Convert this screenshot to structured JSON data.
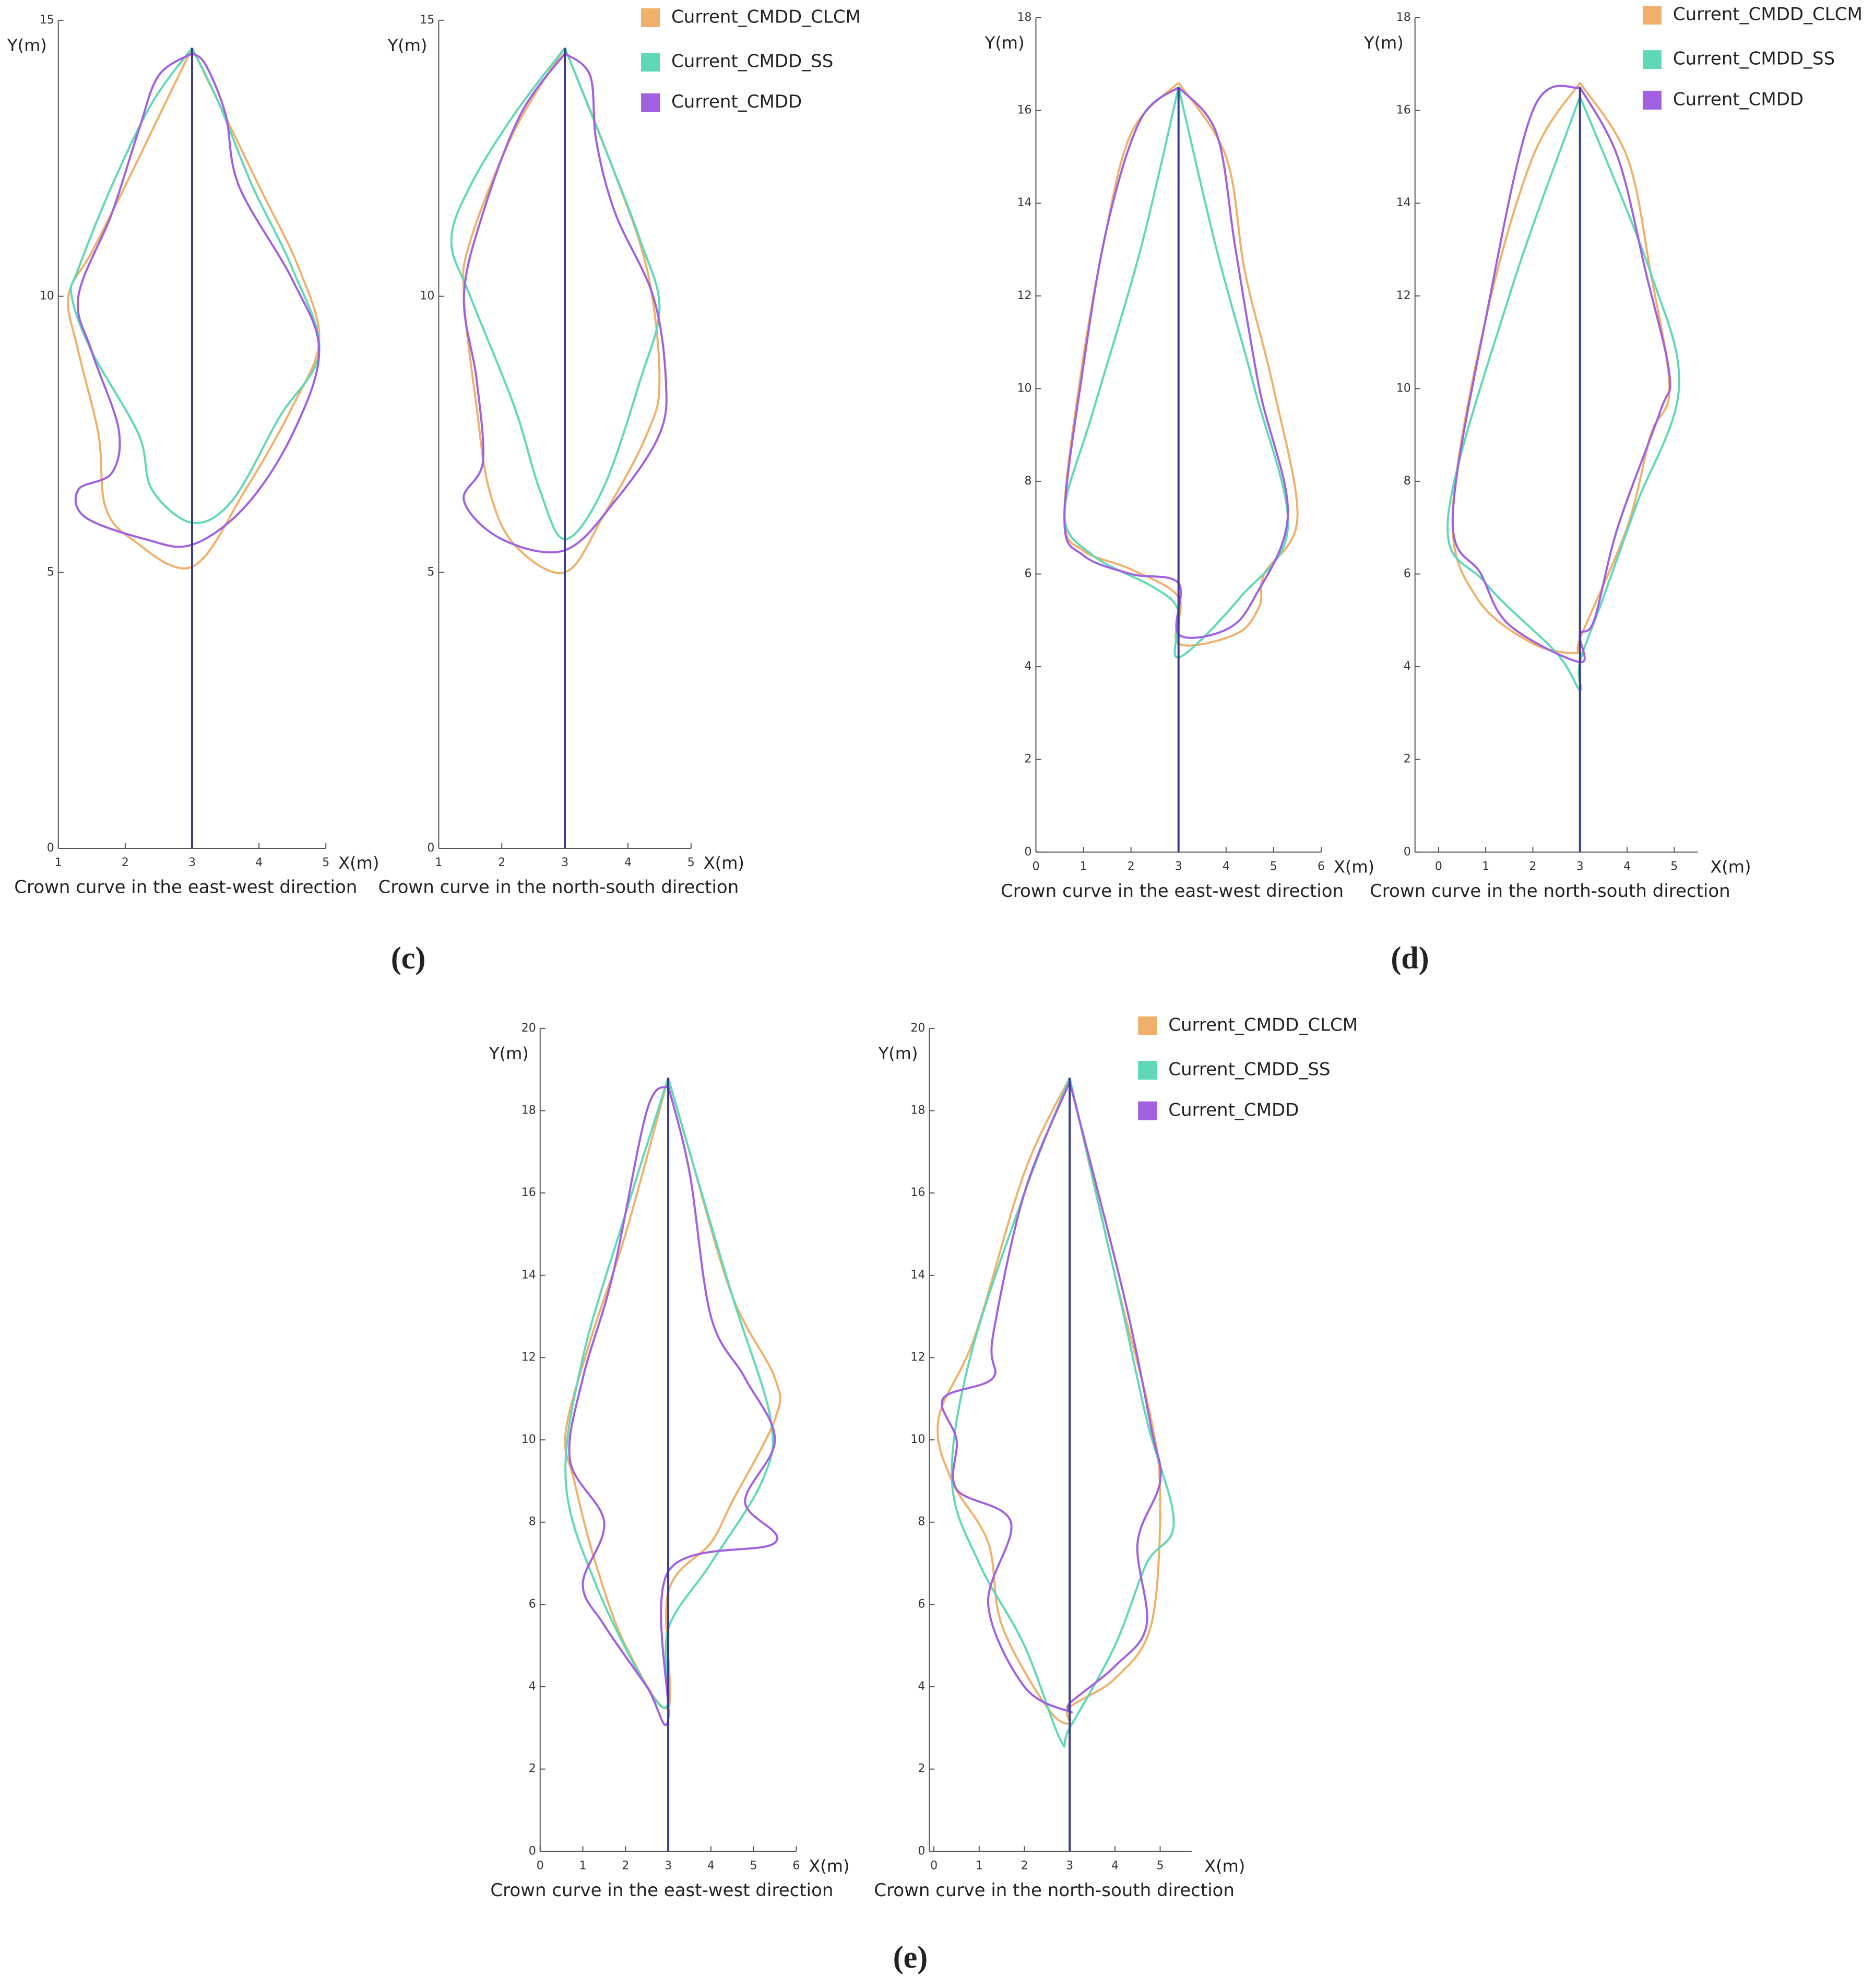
{
  "panel_labels": [
    "(c)",
    "(d)",
    "(e)"
  ],
  "chart_data": [
    {
      "type": "line",
      "caption": "Crown curve in the east-west direction",
      "xlabel": "X(m)",
      "ylabel": "Y(m)",
      "xlim": [
        1,
        5
      ],
      "ylim": [
        0,
        15
      ],
      "xticks": [
        1,
        2,
        3,
        4,
        5
      ],
      "yticks": [
        0,
        5,
        10,
        15
      ],
      "trunk": {
        "color": "#3a3a90",
        "x": [
          3,
          3
        ],
        "y": [
          0,
          14.5
        ]
      },
      "series": [
        {
          "color": "#f0b06a",
          "x": [
            3,
            2.6,
            2.0,
            1.5,
            1.15,
            1.3,
            1.6,
            1.7,
            2.1,
            3,
            3.8,
            4.5,
            4.9,
            4.6,
            4.0,
            3.4,
            3
          ],
          "y": [
            14.5,
            13.5,
            12,
            10.8,
            10,
            9,
            7.5,
            6.2,
            5.6,
            5.1,
            6.5,
            8,
            9.2,
            10.5,
            12,
            13.5,
            14.5
          ]
        },
        {
          "color": "#5fd8b8",
          "x": [
            3,
            2.4,
            1.8,
            1.3,
            1.2,
            1.5,
            2.2,
            2.4,
            3,
            3.6,
            4.3,
            4.9,
            4.5,
            3.9,
            3.4,
            3
          ],
          "y": [
            14.5,
            13.5,
            12,
            10.5,
            10,
            9,
            7.5,
            6.5,
            5.9,
            6.3,
            7.8,
            9,
            10.5,
            12,
            13.5,
            14.5
          ]
        },
        {
          "color": "#a060e0",
          "x": [
            3,
            2.5,
            2.2,
            1.8,
            1.3,
            1.5,
            1.9,
            1.8,
            1.3,
            1.4,
            2.3,
            3,
            3.8,
            4.5,
            4.9,
            4.5,
            3.7,
            3.5,
            3.2,
            3
          ],
          "y": [
            14.4,
            14,
            13,
            11.5,
            10,
            9,
            7.6,
            6.8,
            6.5,
            6,
            5.6,
            5.5,
            6.2,
            7.5,
            9,
            10.3,
            12,
            13.3,
            14.2,
            14.4
          ]
        }
      ]
    },
    {
      "type": "line",
      "caption": "Crown curve in the north-south direction",
      "xlabel": "X(m)",
      "ylabel": "Y(m)",
      "xlim": [
        1,
        5
      ],
      "ylim": [
        0,
        15
      ],
      "xticks": [
        1,
        2,
        3,
        4,
        5
      ],
      "yticks": [
        0,
        5,
        10,
        15
      ],
      "trunk": {
        "color": "#3a3a90",
        "x": [
          3,
          3
        ],
        "y": [
          0,
          14.5
        ]
      },
      "series": [
        {
          "name": "Current_CMDD_CLCM",
          "color": "#f0b06a",
          "x": [
            3,
            2.2,
            1.5,
            1.4,
            1.6,
            1.8,
            2.2,
            3,
            3.6,
            4.3,
            4.5,
            4.3,
            3.7,
            3
          ],
          "y": [
            14.5,
            13,
            11,
            10,
            8,
            6.5,
            5.5,
            5,
            6,
            7.5,
            8.5,
            10.5,
            12.5,
            14.5
          ]
        },
        {
          "name": "Current_CMDD_SS",
          "color": "#5fd8b8",
          "x": [
            3,
            2.2,
            1.5,
            1.2,
            1.5,
            2.2,
            2.6,
            3,
            3.6,
            4.2,
            4.5,
            4.2,
            3.7,
            3
          ],
          "y": [
            14.5,
            13.3,
            12,
            11,
            10,
            8,
            6.5,
            5.6,
            6.5,
            8.5,
            9.8,
            11,
            12.5,
            14.5
          ]
        },
        {
          "name": "Current_CMDD",
          "color": "#a060e0",
          "x": [
            3,
            2.3,
            1.7,
            1.4,
            1.6,
            1.7,
            1.4,
            2,
            3,
            3.8,
            4.5,
            4.6,
            4.4,
            3.8,
            3.5,
            3.4,
            3
          ],
          "y": [
            14.4,
            13.3,
            11.5,
            10,
            8.5,
            7,
            6.3,
            5.6,
            5.4,
            6.3,
            7.5,
            8.5,
            10,
            11.5,
            12.8,
            14,
            14.4
          ]
        }
      ]
    },
    {
      "type": "line",
      "caption": "Crown curve in the east-west direction",
      "xlabel": "X(m)",
      "ylabel": "Y(m)",
      "xlim": [
        0,
        6
      ],
      "ylim": [
        0,
        18
      ],
      "xticks": [
        0,
        1,
        2,
        3,
        4,
        5,
        6
      ],
      "yticks": [
        0,
        2,
        4,
        6,
        8,
        10,
        12,
        14,
        16,
        18
      ],
      "trunk": {
        "color": "#3a3a90",
        "x": [
          3,
          3
        ],
        "y": [
          0,
          16.5
        ]
      },
      "series": [
        {
          "color": "#f0b06a",
          "x": [
            3,
            2,
            1.4,
            0.9,
            0.6,
            1,
            2,
            3,
            3,
            4.2,
            4.7,
            4.8,
            5.5,
            5,
            4.4,
            4,
            3
          ],
          "y": [
            16.6,
            15.5,
            13,
            10,
            7.2,
            6.5,
            6.1,
            5.5,
            4.5,
            4.7,
            5.3,
            6,
            7.2,
            10,
            12.5,
            15,
            16.6
          ]
        },
        {
          "color": "#5fd8b8",
          "x": [
            3,
            2.2,
            1.2,
            0.6,
            1.2,
            2.5,
            3,
            3,
            4.3,
            5.3,
            4.6,
            3.8,
            3
          ],
          "y": [
            16.5,
            13,
            9.5,
            7.3,
            6.4,
            5.7,
            5.2,
            4.2,
            5.5,
            7,
            10,
            13,
            16.5
          ]
        },
        {
          "color": "#a060e0",
          "x": [
            3,
            2.2,
            1.5,
            1,
            0.6,
            1,
            2,
            3,
            3,
            4,
            4.6,
            5.3,
            4.7,
            4.2,
            3.8,
            3
          ],
          "y": [
            16.5,
            15.8,
            13.5,
            10.5,
            7.2,
            6.4,
            6,
            5.8,
            4.7,
            4.8,
            5.5,
            7.3,
            10,
            13,
            15.5,
            16.5
          ]
        }
      ]
    },
    {
      "type": "line",
      "caption": "Crown curve in the north-south direction",
      "xlabel": "X(m)",
      "ylabel": "Y(m)",
      "xlim": [
        -0.5,
        5.5
      ],
      "ylim": [
        0,
        18
      ],
      "xticks": [
        0,
        1,
        2,
        3,
        4,
        5
      ],
      "yticks": [
        0,
        2,
        4,
        6,
        8,
        10,
        12,
        14,
        16,
        18
      ],
      "trunk": {
        "color": "#3a3a90",
        "x": [
          3,
          3
        ],
        "y": [
          0,
          16.5
        ]
      },
      "series": [
        {
          "name": "Current_CMDD_CLCM",
          "color": "#f0b06a",
          "x": [
            3,
            2,
            1,
            0.3,
            0.8,
            2,
            3,
            3,
            4,
            4.5,
            4.9,
            4.5,
            4,
            3
          ],
          "y": [
            16.6,
            15,
            11.5,
            7.3,
            5.5,
            4.5,
            4.3,
            4.6,
            7,
            9,
            10,
            12.5,
            15,
            16.6
          ]
        },
        {
          "name": "Current_CMDD_SS",
          "color": "#5fd8b8",
          "x": [
            3,
            1.5,
            0.2,
            1,
            2.5,
            3,
            3,
            3.5,
            4.2,
            5.1,
            4.5,
            3
          ],
          "y": [
            16.3,
            12,
            7.2,
            5.8,
            4.3,
            3.5,
            4.1,
            5.5,
            7.5,
            10,
            12.5,
            16.3
          ]
        },
        {
          "name": "Current_CMDD",
          "color": "#a060e0",
          "x": [
            3,
            2,
            1,
            0.3,
            0.9,
            1.5,
            3,
            3,
            3.3,
            3.8,
            4.7,
            4.9,
            4.4,
            3.8,
            3
          ],
          "y": [
            16.5,
            16,
            11.5,
            7.2,
            6,
            4.9,
            4.1,
            4.7,
            5,
            7,
            9.5,
            10.3,
            12.5,
            15,
            16.5
          ]
        }
      ]
    },
    {
      "type": "line",
      "caption": "Crown curve in the east-west direction",
      "xlabel": "X(m)",
      "ylabel": "Y(m)",
      "xlim": [
        0,
        6
      ],
      "ylim": [
        0,
        20
      ],
      "xticks": [
        0,
        1,
        2,
        3,
        4,
        5,
        6
      ],
      "yticks": [
        0,
        2,
        4,
        6,
        8,
        10,
        12,
        14,
        16,
        18,
        20
      ],
      "trunk": {
        "color": "#3a3a90",
        "x": [
          3,
          3
        ],
        "y": [
          0,
          18.8
        ]
      },
      "series": [
        {
          "color": "#f0b06a",
          "x": [
            3,
            2,
            1.2,
            0.6,
            0.8,
            1.3,
            2,
            3,
            3,
            4,
            4.5,
            5.5,
            5.5,
            4.5,
            3.5,
            3
          ],
          "y": [
            18.8,
            15,
            12.5,
            10.2,
            9,
            7,
            5,
            3.5,
            6.3,
            7.5,
            8.5,
            10.5,
            11.5,
            13.5,
            17,
            18.8
          ]
        },
        {
          "color": "#5fd8b8",
          "x": [
            3,
            2,
            1,
            0.6,
            1.3,
            2.5,
            3,
            3,
            4,
            5.2,
            5.4,
            4.5,
            3.5,
            3
          ],
          "y": [
            18.8,
            15.5,
            12,
            9,
            6.5,
            4,
            3.6,
            5.4,
            7,
            9,
            10.5,
            13.5,
            17,
            18.8
          ]
        },
        {
          "color": "#a060e0",
          "x": [
            3,
            2.5,
            1.7,
            1,
            0.7,
            1.5,
            1,
            1.5,
            2.5,
            3,
            3,
            5.5,
            4.8,
            5.5,
            4.8,
            4,
            3.5,
            3
          ],
          "y": [
            18.6,
            18,
            14,
            11.5,
            9.5,
            8,
            6.5,
            5.5,
            4,
            3.2,
            6.8,
            7.5,
            8.5,
            10,
            11.5,
            13,
            16.5,
            18.6
          ]
        }
      ]
    },
    {
      "type": "line",
      "caption": "Crown curve in the north-south direction",
      "xlabel": "X(m)",
      "ylabel": "Y(m)",
      "xlim": [
        -0.1,
        5.7
      ],
      "ylim": [
        0,
        20
      ],
      "xticks": [
        0,
        1,
        2,
        3,
        4,
        5
      ],
      "yticks": [
        0,
        2,
        4,
        6,
        8,
        10,
        12,
        14,
        16,
        18,
        20
      ],
      "trunk": {
        "color": "#3a3a90",
        "x": [
          3,
          3
        ],
        "y": [
          0,
          18.8
        ]
      },
      "series": [
        {
          "name": "Current_CMDD_CLCM",
          "color": "#f0b06a",
          "x": [
            3,
            2,
            0.9,
            0.1,
            0.4,
            1.2,
            1.5,
            2.5,
            3,
            3,
            4,
            4.8,
            5,
            4.8,
            4,
            3
          ],
          "y": [
            18.8,
            16.5,
            12.5,
            10.5,
            9,
            7.5,
            5.5,
            3.5,
            3.1,
            3.5,
            4.2,
            5.5,
            8.5,
            10.5,
            14,
            18.8
          ]
        },
        {
          "name": "Current_CMDD_SS",
          "color": "#5fd8b8",
          "x": [
            3,
            2,
            0.8,
            0.4,
            1,
            2,
            2.8,
            3,
            4,
            4.7,
            5.3,
            4.7,
            4,
            3
          ],
          "y": [
            18.8,
            16,
            12,
            9,
            7,
            5,
            2.7,
            3,
            5,
            7,
            8,
            10.5,
            14,
            18.8
          ]
        },
        {
          "name": "Current_CMDD",
          "color": "#a060e0",
          "x": [
            3,
            2,
            1.3,
            1.3,
            0.2,
            0.5,
            0.5,
            1.7,
            1.2,
            2,
            3,
            3,
            4,
            4.7,
            4.5,
            5,
            4.8,
            4.2,
            3
          ],
          "y": [
            18.7,
            16,
            12.5,
            11.5,
            11,
            10,
            8.8,
            8,
            6,
            4,
            3.4,
            3.6,
            4.5,
            5.5,
            7.5,
            9,
            10.3,
            13.5,
            18.7
          ]
        }
      ]
    }
  ]
}
